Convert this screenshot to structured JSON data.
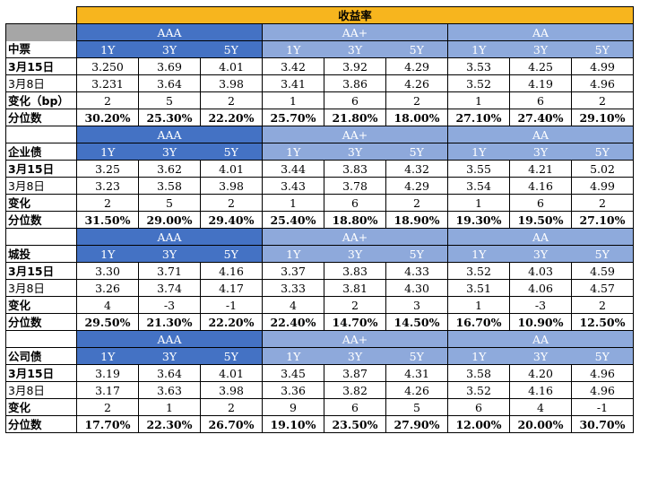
{
  "title": "收益率",
  "grades": [
    "AAA",
    "AA+",
    "AA"
  ],
  "tenors": [
    "1Y",
    "3Y",
    "5Y"
  ],
  "sections": [
    {
      "name": "中票",
      "rows": [
        {
          "label": "3月15日",
          "values": [
            "3.250",
            "3.69",
            "4.01",
            "3.42",
            "3.92",
            "4.29",
            "3.53",
            "4.25",
            "4.99"
          ]
        },
        {
          "label": "3月8日",
          "values": [
            "3.231",
            "3.64",
            "3.98",
            "3.41",
            "3.86",
            "4.26",
            "3.52",
            "4.19",
            "4.96"
          ]
        },
        {
          "label": "变化（bp）",
          "values": [
            "2",
            "5",
            "2",
            "1",
            "6",
            "2",
            "1",
            "6",
            "2"
          ]
        },
        {
          "label": "分位数",
          "values": [
            "30.20%",
            "25.30%",
            "22.20%",
            "25.70%",
            "21.80%",
            "18.00%",
            "27.10%",
            "27.40%",
            "29.10%"
          ]
        }
      ]
    },
    {
      "name": "企业债",
      "rows": [
        {
          "label": "3月15日",
          "values": [
            "3.25",
            "3.62",
            "4.01",
            "3.44",
            "3.83",
            "4.32",
            "3.55",
            "4.21",
            "5.02"
          ]
        },
        {
          "label": "3月8日",
          "values": [
            "3.23",
            "3.58",
            "3.98",
            "3.43",
            "3.78",
            "4.29",
            "3.54",
            "4.16",
            "4.99"
          ]
        },
        {
          "label": "变化",
          "values": [
            "2",
            "5",
            "2",
            "1",
            "6",
            "2",
            "1",
            "6",
            "2"
          ]
        },
        {
          "label": "分位数",
          "values": [
            "31.50%",
            "29.00%",
            "29.40%",
            "25.40%",
            "18.80%",
            "18.90%",
            "19.30%",
            "19.50%",
            "27.10%"
          ]
        }
      ]
    },
    {
      "name": "城投",
      "rows": [
        {
          "label": "3月15日",
          "values": [
            "3.30",
            "3.71",
            "4.16",
            "3.37",
            "3.83",
            "4.33",
            "3.52",
            "4.03",
            "4.59"
          ]
        },
        {
          "label": "3月8日",
          "values": [
            "3.26",
            "3.74",
            "4.17",
            "3.33",
            "3.81",
            "4.30",
            "3.51",
            "4.06",
            "4.57"
          ]
        },
        {
          "label": "变化",
          "values": [
            "4",
            "-3",
            "-1",
            "4",
            "2",
            "3",
            "1",
            "-3",
            "2"
          ]
        },
        {
          "label": "分位数",
          "values": [
            "29.50%",
            "21.30%",
            "22.20%",
            "22.40%",
            "14.70%",
            "14.50%",
            "16.70%",
            "10.90%",
            "12.50%"
          ]
        }
      ]
    },
    {
      "name": "公司债",
      "rows": [
        {
          "label": "3月15日",
          "values": [
            "3.19",
            "3.64",
            "4.01",
            "3.45",
            "3.87",
            "4.31",
            "3.58",
            "4.20",
            "4.96"
          ]
        },
        {
          "label": "3月8日",
          "values": [
            "3.17",
            "3.63",
            "3.98",
            "3.36",
            "3.82",
            "4.26",
            "3.52",
            "4.16",
            "4.96"
          ]
        },
        {
          "label": "变化",
          "values": [
            "2",
            "1",
            "2",
            "9",
            "6",
            "5",
            "6",
            "4",
            "-1"
          ]
        },
        {
          "label": "分位数",
          "values": [
            "17.70%",
            "22.30%",
            "26.70%",
            "19.10%",
            "23.50%",
            "27.90%",
            "12.00%",
            "20.00%",
            "30.70%"
          ]
        }
      ]
    }
  ],
  "colors": {
    "title": "#f7b51e",
    "aaa": "#4472c4",
    "aaplus": "#8ea9db",
    "aa": "#8eaadc"
  }
}
